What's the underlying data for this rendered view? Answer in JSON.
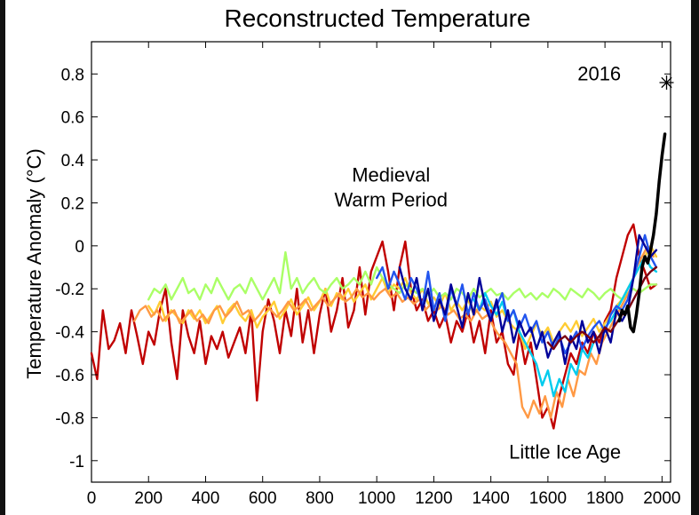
{
  "chart_data": {
    "type": "line",
    "title": "Reconstructed Temperature",
    "xlabel": "",
    "ylabel": "Temperature Anomaly (°C)",
    "xlim": [
      0,
      2030
    ],
    "ylim": [
      -1.1,
      0.95
    ],
    "x_ticks": [
      0,
      200,
      400,
      600,
      800,
      1000,
      1200,
      1400,
      1600,
      1800,
      2000
    ],
    "y_ticks": [
      0.8,
      0.6,
      0.4,
      0.2,
      0,
      -0.2,
      -0.4,
      -0.6,
      -0.8,
      -1
    ],
    "y_tick_labels": [
      "0.8",
      "0.6",
      "0.4",
      "0.2",
      "0",
      "-0.2",
      "-0.4",
      "-0.6",
      "-0.8",
      "-1"
    ],
    "grid": false,
    "annotations": [
      {
        "lines": [
          "Medieval",
          "Warm Period"
        ],
        "x": 1050,
        "y": 0.3
      },
      {
        "lines": [
          "Little Ice Age"
        ],
        "x": 1660,
        "y": -0.99
      },
      {
        "lines": [
          "2016"
        ],
        "x": 1780,
        "y": 0.77
      }
    ],
    "marker_2016": {
      "x": 2016,
      "y": 0.76,
      "symbol": "asterisk"
    },
    "series": [
      {
        "color": "#c00000",
        "x": [
          0,
          20,
          40,
          60,
          80,
          100,
          120,
          140,
          160,
          180,
          200,
          220,
          240,
          260,
          280,
          300,
          320,
          340,
          360,
          380,
          400,
          420,
          440,
          460,
          480,
          500,
          520,
          540,
          560,
          580,
          600,
          620,
          640,
          660,
          680,
          700,
          720,
          740,
          760,
          780,
          800,
          820,
          840,
          860,
          880,
          900,
          920,
          940,
          960,
          980,
          1000,
          1020,
          1040,
          1060,
          1080,
          1100,
          1120,
          1140,
          1160,
          1180,
          1200,
          1220,
          1240,
          1260,
          1280,
          1300,
          1320,
          1340,
          1360,
          1380,
          1400,
          1420,
          1440,
          1460,
          1480,
          1500,
          1520,
          1540,
          1560,
          1580,
          1600,
          1620,
          1640,
          1660,
          1680,
          1700,
          1720,
          1740,
          1760,
          1780,
          1800,
          1820,
          1840,
          1860,
          1880,
          1900,
          1920,
          1940,
          1960,
          1980
        ],
        "values": [
          -0.5,
          -0.62,
          -0.3,
          -0.48,
          -0.44,
          -0.36,
          -0.5,
          -0.3,
          -0.42,
          -0.55,
          -0.4,
          -0.46,
          -0.3,
          -0.2,
          -0.45,
          -0.62,
          -0.3,
          -0.42,
          -0.5,
          -0.35,
          -0.55,
          -0.42,
          -0.48,
          -0.4,
          -0.52,
          -0.45,
          -0.38,
          -0.5,
          -0.3,
          -0.72,
          -0.4,
          -0.25,
          -0.35,
          -0.5,
          -0.3,
          -0.42,
          -0.2,
          -0.45,
          -0.3,
          -0.5,
          -0.32,
          -0.2,
          -0.4,
          -0.3,
          -0.15,
          -0.38,
          -0.3,
          -0.1,
          -0.32,
          -0.12,
          -0.05,
          0.02,
          -0.12,
          -0.3,
          -0.1,
          0.02,
          -0.2,
          -0.3,
          -0.25,
          -0.35,
          -0.3,
          -0.38,
          -0.32,
          -0.45,
          -0.35,
          -0.4,
          -0.3,
          -0.45,
          -0.35,
          -0.5,
          -0.3,
          -0.45,
          -0.4,
          -0.55,
          -0.6,
          -0.4,
          -0.55,
          -0.45,
          -0.62,
          -0.8,
          -0.75,
          -0.85,
          -0.7,
          -0.6,
          -0.5,
          -0.55,
          -0.45,
          -0.5,
          -0.4,
          -0.45,
          -0.35,
          -0.3,
          -0.15,
          -0.05,
          0.05,
          0.1,
          -0.05,
          -0.12,
          -0.2,
          -0.18
        ]
      },
      {
        "color": "#ffcc33",
        "x": [
          200,
          220,
          240,
          260,
          280,
          300,
          320,
          340,
          360,
          380,
          400,
          420,
          440,
          460,
          480,
          500,
          520,
          540,
          560,
          580,
          600,
          620,
          640,
          660,
          680,
          700,
          720,
          740,
          760,
          780,
          800,
          820,
          840,
          860,
          880,
          900,
          920,
          940,
          960,
          980,
          1000,
          1020,
          1040,
          1060,
          1080,
          1100,
          1120,
          1140,
          1160,
          1180,
          1200,
          1220,
          1240,
          1260,
          1280,
          1300,
          1320,
          1340,
          1360,
          1380,
          1400,
          1420,
          1440,
          1460,
          1480,
          1500,
          1520,
          1540,
          1560,
          1580,
          1600,
          1620,
          1640,
          1660,
          1680,
          1700,
          1720,
          1740,
          1760,
          1780,
          1800,
          1820,
          1840,
          1860,
          1880,
          1900,
          1920,
          1940,
          1960,
          1980
        ],
        "values": [
          -0.28,
          -0.32,
          -0.26,
          -0.35,
          -0.3,
          -0.33,
          -0.36,
          -0.3,
          -0.34,
          -0.3,
          -0.36,
          -0.32,
          -0.28,
          -0.36,
          -0.3,
          -0.27,
          -0.32,
          -0.35,
          -0.3,
          -0.38,
          -0.33,
          -0.3,
          -0.26,
          -0.34,
          -0.3,
          -0.25,
          -0.32,
          -0.28,
          -0.24,
          -0.3,
          -0.26,
          -0.2,
          -0.28,
          -0.22,
          -0.25,
          -0.2,
          -0.26,
          -0.22,
          -0.18,
          -0.25,
          -0.2,
          -0.15,
          -0.22,
          -0.18,
          -0.2,
          -0.15,
          -0.22,
          -0.25,
          -0.2,
          -0.27,
          -0.24,
          -0.28,
          -0.22,
          -0.3,
          -0.26,
          -0.3,
          -0.25,
          -0.32,
          -0.28,
          -0.3,
          -0.26,
          -0.33,
          -0.3,
          -0.35,
          -0.38,
          -0.4,
          -0.48,
          -0.42,
          -0.36,
          -0.42,
          -0.38,
          -0.45,
          -0.4,
          -0.36,
          -0.4,
          -0.35,
          -0.42,
          -0.38,
          -0.34,
          -0.4,
          -0.36,
          -0.32,
          -0.28,
          -0.25,
          -0.2,
          -0.15,
          -0.1,
          -0.05,
          0.0,
          -0.05
        ]
      },
      {
        "color": "#aaff66",
        "x": [
          200,
          220,
          240,
          260,
          280,
          300,
          320,
          340,
          360,
          380,
          400,
          420,
          440,
          460,
          480,
          500,
          520,
          540,
          560,
          580,
          600,
          620,
          640,
          660,
          680,
          700,
          720,
          740,
          760,
          780,
          800,
          820,
          840,
          860,
          880,
          900,
          920,
          940,
          960,
          980,
          1000,
          1020,
          1040,
          1060,
          1080,
          1100,
          1120,
          1140,
          1160,
          1180,
          1200,
          1220,
          1240,
          1260,
          1280,
          1300,
          1320,
          1340,
          1360,
          1380,
          1400,
          1420,
          1440,
          1460,
          1480,
          1500,
          1520,
          1540,
          1560,
          1580,
          1600,
          1620,
          1640,
          1660,
          1680,
          1700,
          1720,
          1740,
          1760,
          1780,
          1800,
          1820,
          1840,
          1860,
          1880,
          1900,
          1920,
          1940,
          1960,
          1980
        ],
        "values": [
          -0.25,
          -0.2,
          -0.22,
          -0.18,
          -0.25,
          -0.2,
          -0.15,
          -0.22,
          -0.2,
          -0.25,
          -0.18,
          -0.22,
          -0.15,
          -0.2,
          -0.25,
          -0.2,
          -0.18,
          -0.22,
          -0.15,
          -0.2,
          -0.25,
          -0.2,
          -0.15,
          -0.22,
          -0.03,
          -0.2,
          -0.15,
          -0.22,
          -0.18,
          -0.15,
          -0.2,
          -0.22,
          -0.18,
          -0.15,
          -0.2,
          -0.18,
          -0.15,
          -0.18,
          -0.12,
          -0.18,
          -0.1,
          -0.15,
          -0.18,
          -0.2,
          -0.22,
          -0.18,
          -0.2,
          -0.22,
          -0.2,
          -0.23,
          -0.2,
          -0.24,
          -0.22,
          -0.25,
          -0.2,
          -0.22,
          -0.25,
          -0.2,
          -0.24,
          -0.22,
          -0.2,
          -0.23,
          -0.22,
          -0.25,
          -0.22,
          -0.2,
          -0.24,
          -0.22,
          -0.25,
          -0.22,
          -0.24,
          -0.2,
          -0.22,
          -0.25,
          -0.2,
          -0.22,
          -0.24,
          -0.2,
          -0.22,
          -0.25,
          -0.22,
          -0.2,
          -0.23,
          -0.25,
          -0.22,
          -0.2,
          -0.22,
          -0.2,
          -0.18,
          -0.18
        ]
      },
      {
        "color": "#ff9944",
        "x": [
          150,
          170,
          190,
          210,
          230,
          250,
          270,
          290,
          310,
          330,
          350,
          370,
          390,
          410,
          430,
          450,
          470,
          490,
          510,
          530,
          550,
          570,
          590,
          610,
          630,
          650,
          670,
          690,
          710,
          730,
          750,
          770,
          790,
          810,
          830,
          850,
          870,
          890,
          910,
          930,
          950,
          970,
          990,
          1010,
          1030,
          1050,
          1070,
          1090,
          1110,
          1130,
          1150,
          1170,
          1190,
          1210,
          1230,
          1250,
          1270,
          1290,
          1310,
          1330,
          1350,
          1370,
          1390,
          1410,
          1430,
          1450,
          1470,
          1490,
          1510,
          1530,
          1550,
          1570,
          1590,
          1610,
          1630,
          1650,
          1670,
          1690,
          1710,
          1730,
          1750,
          1770,
          1790,
          1810,
          1830,
          1850,
          1870,
          1890,
          1910,
          1930,
          1950,
          1970
        ],
        "values": [
          -0.35,
          -0.3,
          -0.28,
          -0.33,
          -0.3,
          -0.35,
          -0.32,
          -0.3,
          -0.36,
          -0.33,
          -0.3,
          -0.35,
          -0.32,
          -0.36,
          -0.3,
          -0.28,
          -0.33,
          -0.3,
          -0.26,
          -0.32,
          -0.3,
          -0.35,
          -0.32,
          -0.28,
          -0.3,
          -0.33,
          -0.3,
          -0.26,
          -0.3,
          -0.28,
          -0.25,
          -0.3,
          -0.27,
          -0.24,
          -0.28,
          -0.25,
          -0.22,
          -0.26,
          -0.24,
          -0.2,
          -0.24,
          -0.22,
          -0.25,
          -0.22,
          -0.2,
          -0.24,
          -0.22,
          -0.26,
          -0.24,
          -0.27,
          -0.25,
          -0.3,
          -0.27,
          -0.3,
          -0.28,
          -0.32,
          -0.3,
          -0.34,
          -0.32,
          -0.35,
          -0.3,
          -0.34,
          -0.32,
          -0.38,
          -0.42,
          -0.45,
          -0.5,
          -0.55,
          -0.75,
          -0.8,
          -0.72,
          -0.78,
          -0.7,
          -0.8,
          -0.68,
          -0.75,
          -0.62,
          -0.7,
          -0.58,
          -0.6,
          -0.5,
          -0.55,
          -0.45,
          -0.4,
          -0.35,
          -0.3,
          -0.25,
          -0.2,
          -0.1,
          -0.05,
          0.0,
          -0.05
        ]
      },
      {
        "color": "#00ccee",
        "x": [
          1340,
          1360,
          1380,
          1400,
          1420,
          1440,
          1460,
          1480,
          1500,
          1520,
          1540,
          1560,
          1580,
          1600,
          1620,
          1640,
          1660,
          1680,
          1700,
          1720,
          1740,
          1760,
          1780,
          1800,
          1820,
          1840,
          1860,
          1880,
          1900,
          1920,
          1940,
          1960,
          1980
        ],
        "values": [
          -0.25,
          -0.3,
          -0.22,
          -0.28,
          -0.32,
          -0.26,
          -0.35,
          -0.3,
          -0.4,
          -0.45,
          -0.5,
          -0.55,
          -0.65,
          -0.58,
          -0.7,
          -0.62,
          -0.68,
          -0.55,
          -0.6,
          -0.48,
          -0.52,
          -0.45,
          -0.42,
          -0.38,
          -0.35,
          -0.3,
          -0.25,
          -0.2,
          -0.15,
          -0.1,
          -0.05,
          -0.1,
          -0.12
        ]
      },
      {
        "color": "#2255ee",
        "x": [
          1000,
          1020,
          1040,
          1060,
          1080,
          1100,
          1120,
          1140,
          1160,
          1180,
          1200,
          1220,
          1240,
          1260,
          1280,
          1300,
          1320,
          1340,
          1360,
          1380,
          1400,
          1420,
          1440,
          1460,
          1480,
          1500,
          1520,
          1540,
          1560,
          1580,
          1600,
          1620,
          1640,
          1660,
          1680,
          1700,
          1720,
          1740,
          1760,
          1780,
          1800,
          1820,
          1840,
          1860,
          1880,
          1900,
          1920,
          1940,
          1960,
          1980
        ],
        "values": [
          -0.15,
          -0.1,
          -0.2,
          -0.12,
          -0.18,
          -0.25,
          -0.15,
          -0.2,
          -0.28,
          -0.12,
          -0.3,
          -0.22,
          -0.35,
          -0.2,
          -0.28,
          -0.18,
          -0.32,
          -0.22,
          -0.3,
          -0.25,
          -0.33,
          -0.28,
          -0.22,
          -0.35,
          -0.3,
          -0.38,
          -0.32,
          -0.4,
          -0.35,
          -0.45,
          -0.4,
          -0.48,
          -0.42,
          -0.5,
          -0.45,
          -0.4,
          -0.48,
          -0.42,
          -0.38,
          -0.35,
          -0.4,
          -0.32,
          -0.28,
          -0.3,
          -0.25,
          -0.15,
          -0.05,
          0.05,
          -0.05,
          -0.1
        ]
      },
      {
        "color": "#000099",
        "x": [
          1080,
          1100,
          1120,
          1140,
          1160,
          1180,
          1200,
          1220,
          1240,
          1260,
          1280,
          1300,
          1320,
          1340,
          1360,
          1380,
          1400,
          1420,
          1440,
          1460,
          1480,
          1500,
          1520,
          1540,
          1560,
          1580,
          1600,
          1620,
          1640,
          1660,
          1680,
          1700,
          1720,
          1740,
          1760,
          1780,
          1800,
          1820,
          1840,
          1860,
          1880,
          1900,
          1920,
          1940,
          1960,
          1980
        ],
        "values": [
          -0.1,
          -0.2,
          -0.25,
          -0.15,
          -0.3,
          -0.2,
          -0.35,
          -0.25,
          -0.32,
          -0.18,
          -0.28,
          -0.38,
          -0.22,
          -0.32,
          -0.15,
          -0.28,
          -0.35,
          -0.25,
          -0.4,
          -0.3,
          -0.45,
          -0.35,
          -0.42,
          -0.38,
          -0.48,
          -0.4,
          -0.52,
          -0.45,
          -0.4,
          -0.55,
          -0.42,
          -0.48,
          -0.35,
          -0.45,
          -0.4,
          -0.5,
          -0.38,
          -0.45,
          -0.3,
          -0.35,
          -0.3,
          -0.15,
          0.05,
          0.0,
          -0.05,
          -0.02
        ]
      },
      {
        "color": "#7a0010",
        "x": [
          1600,
          1620,
          1640,
          1660,
          1680,
          1700,
          1720,
          1740,
          1760,
          1780,
          1800,
          1820,
          1840,
          1860,
          1880,
          1900,
          1920,
          1940,
          1960,
          1980
        ],
        "values": [
          -0.45,
          -0.48,
          -0.44,
          -0.42,
          -0.45,
          -0.42,
          -0.4,
          -0.42,
          -0.45,
          -0.42,
          -0.38,
          -0.4,
          -0.36,
          -0.32,
          -0.3,
          -0.25,
          -0.2,
          -0.15,
          -0.12,
          -0.1
        ]
      },
      {
        "color": "#000000",
        "x": [
          1850,
          1860,
          1870,
          1880,
          1890,
          1900,
          1910,
          1920,
          1930,
          1940,
          1950,
          1960,
          1970,
          1980,
          1990,
          2000,
          2010
        ],
        "values": [
          -0.35,
          -0.3,
          -0.32,
          -0.28,
          -0.38,
          -0.4,
          -0.32,
          -0.22,
          -0.1,
          -0.05,
          -0.08,
          -0.02,
          0.05,
          0.15,
          0.3,
          0.42,
          0.52
        ],
        "width": 3.5
      }
    ]
  }
}
